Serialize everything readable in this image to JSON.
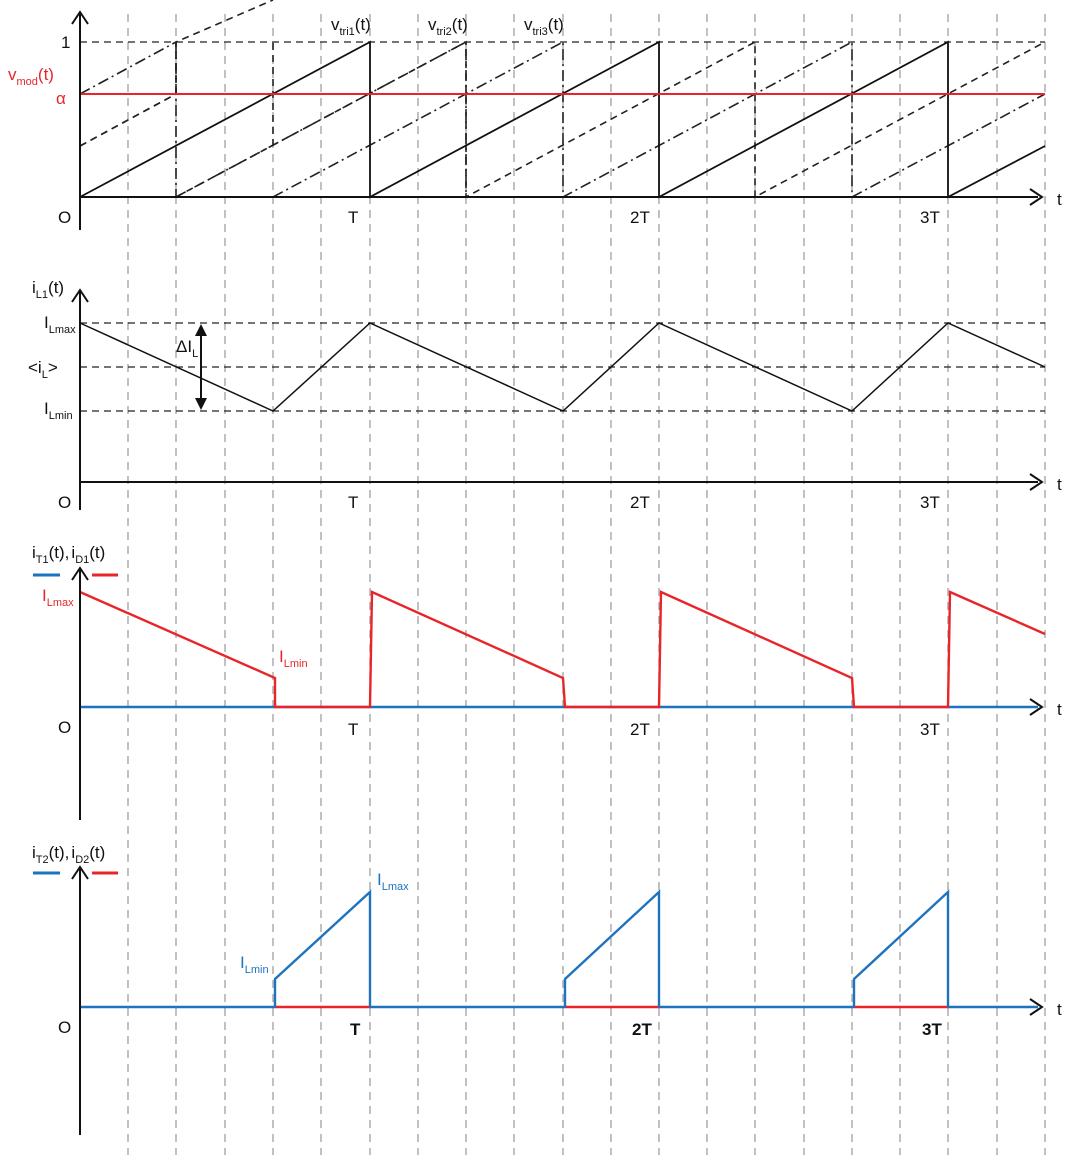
{
  "panel1": {
    "y_tick_one": "1",
    "vmod_main": "v",
    "vmod_sub": "mod",
    "vmod_tail": "(t)",
    "alpha": "α",
    "origin": "O",
    "x_axis_label": "t",
    "period_labels": [
      "T",
      "2T",
      "3T"
    ],
    "tri_labels": [
      {
        "main": "v",
        "sub": "tri1",
        "tail": "(t)"
      },
      {
        "main": "v",
        "sub": "tri2",
        "tail": "(t)"
      },
      {
        "main": "v",
        "sub": "tri3",
        "tail": "(t)"
      }
    ]
  },
  "panel2": {
    "y_label": {
      "main": "i",
      "sub": "L1",
      "tail": "(t)"
    },
    "i_lmax": {
      "main": "I",
      "sub": "Lmax"
    },
    "i_avg": {
      "pre": "<i",
      "sub": "L",
      "tail": ">"
    },
    "i_lmin": {
      "main": "I",
      "sub": "Lmin"
    },
    "delta": {
      "main": "ΔI",
      "sub": "L"
    },
    "origin": "O",
    "x_axis_label": "t",
    "period_labels": [
      "T",
      "2T",
      "3T"
    ]
  },
  "panel3": {
    "y_label": {
      "a_main": "i",
      "a_sub": "T1",
      "a_tail": "(t),",
      "b_main": "i",
      "b_sub": "D1",
      "b_tail": "(t)"
    },
    "i_lmax": {
      "main": "I",
      "sub": "Lmax"
    },
    "i_lmin": {
      "main": "I",
      "sub": "Lmin"
    },
    "origin": "O",
    "x_axis_label": "t",
    "period_labels": [
      "T",
      "2T",
      "3T"
    ]
  },
  "panel4": {
    "y_label": {
      "a_main": "i",
      "a_sub": "T2",
      "a_tail": "(t),",
      "b_main": "i",
      "b_sub": "D2",
      "b_tail": "(t)"
    },
    "i_lmax": {
      "main": "I",
      "sub": "Lmax"
    },
    "i_lmin": {
      "main": "I",
      "sub": "Lmin"
    },
    "origin": "O",
    "x_axis_label": "t",
    "period_labels": [
      "T",
      "2T",
      "3T"
    ]
  },
  "colors": {
    "transistor": "#1e73be",
    "diode": "#e8262a",
    "modulation": "#e8262a"
  }
}
